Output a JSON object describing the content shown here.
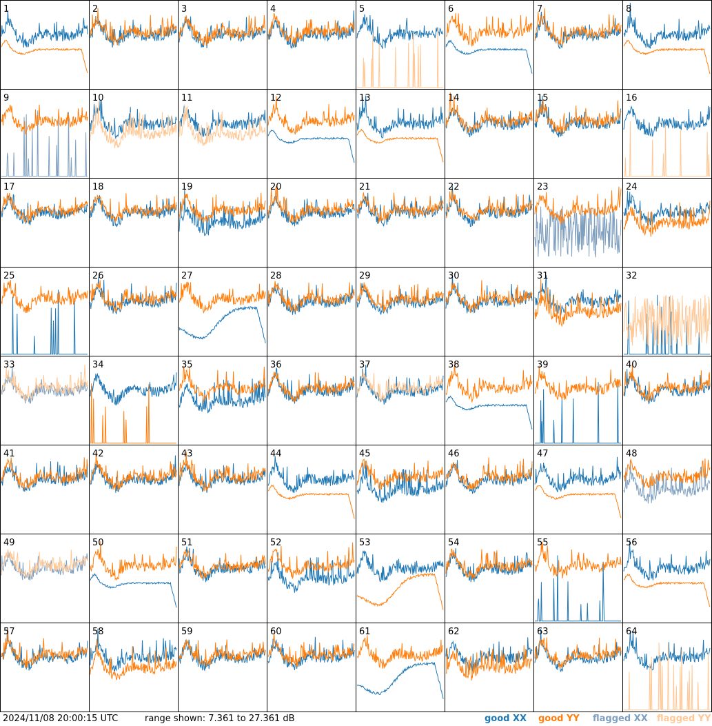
{
  "footer": {
    "timestamp": "2024/11/08 20:00:15 UTC",
    "range_text": "range shown: 7.361 to 27.361 dB"
  },
  "legend": [
    {
      "name": "good XX",
      "color": "#1f77b4"
    },
    {
      "name": "good YY",
      "color": "#ff7f0e"
    },
    {
      "name": "flagged XX",
      "color": "#7f9fbf"
    },
    {
      "name": "flagged YY",
      "color": "#ffc896"
    }
  ],
  "chart_data": {
    "type": "line",
    "grid": "8x8",
    "ylim": [
      7.361,
      27.361
    ],
    "yunit": "dB",
    "panels": [
      {
        "label": "1",
        "xx": "good",
        "yy": "good",
        "xx_shape": "normal",
        "yy_shape": "smooth"
      },
      {
        "label": "2",
        "xx": "good",
        "yy": "good",
        "xx_shape": "normal",
        "yy_shape": "normal"
      },
      {
        "label": "3",
        "xx": "good",
        "yy": "good",
        "xx_shape": "normal",
        "yy_shape": "normal"
      },
      {
        "label": "4",
        "xx": "good",
        "yy": "good",
        "xx_shape": "normal",
        "yy_shape": "normal"
      },
      {
        "label": "5",
        "xx": "good",
        "yy": "flagged",
        "xx_shape": "normal",
        "yy_shape": "spikes"
      },
      {
        "label": "6",
        "xx": "good",
        "yy": "good",
        "xx_shape": "smooth",
        "yy_shape": "normal"
      },
      {
        "label": "7",
        "xx": "good",
        "yy": "good",
        "xx_shape": "normal",
        "yy_shape": "normal"
      },
      {
        "label": "8",
        "xx": "good",
        "yy": "good",
        "xx_shape": "normal",
        "yy_shape": "smooth"
      },
      {
        "label": "9",
        "xx": "flagged",
        "yy": "good",
        "xx_shape": "spikes",
        "yy_shape": "normal"
      },
      {
        "label": "10",
        "xx": "good",
        "yy": "flagged",
        "xx_shape": "normal",
        "yy_shape": "low"
      },
      {
        "label": "11",
        "xx": "good",
        "yy": "flagged",
        "xx_shape": "normal",
        "yy_shape": "low"
      },
      {
        "label": "12",
        "xx": "good",
        "yy": "good",
        "xx_shape": "smooth",
        "yy_shape": "normal"
      },
      {
        "label": "13",
        "xx": "good",
        "yy": "good",
        "xx_shape": "normal",
        "yy_shape": "smooth"
      },
      {
        "label": "14",
        "xx": "good",
        "yy": "good",
        "xx_shape": "normal",
        "yy_shape": "normal"
      },
      {
        "label": "15",
        "xx": "good",
        "yy": "good",
        "xx_shape": "normal",
        "yy_shape": "normal"
      },
      {
        "label": "16",
        "xx": "good",
        "yy": "flagged",
        "xx_shape": "normal",
        "yy_shape": "spikes"
      },
      {
        "label": "17",
        "xx": "good",
        "yy": "good",
        "xx_shape": "normal",
        "yy_shape": "normal"
      },
      {
        "label": "18",
        "xx": "good",
        "yy": "good",
        "xx_shape": "normal",
        "yy_shape": "normal"
      },
      {
        "label": "19",
        "xx": "good",
        "yy": "good",
        "xx_shape": "low",
        "yy_shape": "normal"
      },
      {
        "label": "20",
        "xx": "good",
        "yy": "good",
        "xx_shape": "normal",
        "yy_shape": "normal"
      },
      {
        "label": "21",
        "xx": "good",
        "yy": "good",
        "xx_shape": "normal",
        "yy_shape": "normal"
      },
      {
        "label": "22",
        "xx": "good",
        "yy": "good",
        "xx_shape": "normal",
        "yy_shape": "normal"
      },
      {
        "label": "23",
        "xx": "flagged",
        "yy": "good",
        "xx_shape": "noisy",
        "yy_shape": "normal"
      },
      {
        "label": "24",
        "xx": "good",
        "yy": "good",
        "xx_shape": "normal",
        "yy_shape": "low"
      },
      {
        "label": "25",
        "xx": "good",
        "yy": "good",
        "xx_shape": "spikes",
        "yy_shape": "normal"
      },
      {
        "label": "26",
        "xx": "good",
        "yy": "good",
        "xx_shape": "normal",
        "yy_shape": "normal"
      },
      {
        "label": "27",
        "xx": "good",
        "yy": "good",
        "xx_shape": "dip",
        "yy_shape": "normal"
      },
      {
        "label": "28",
        "xx": "good",
        "yy": "good",
        "xx_shape": "normal",
        "yy_shape": "normal"
      },
      {
        "label": "29",
        "xx": "good",
        "yy": "good",
        "xx_shape": "normal",
        "yy_shape": "normal"
      },
      {
        "label": "30",
        "xx": "good",
        "yy": "good",
        "xx_shape": "normal",
        "yy_shape": "normal"
      },
      {
        "label": "31",
        "xx": "good",
        "yy": "good",
        "xx_shape": "normal",
        "yy_shape": "low"
      },
      {
        "label": "32",
        "xx": "good",
        "yy": "flagged",
        "xx_shape": "spikes",
        "yy_shape": "noisy"
      },
      {
        "label": "33",
        "xx": "flagged",
        "yy": "flagged",
        "xx_shape": "normal",
        "yy_shape": "normal"
      },
      {
        "label": "34",
        "xx": "good",
        "yy": "good",
        "xx_shape": "normal",
        "yy_shape": "spikes"
      },
      {
        "label": "35",
        "xx": "good",
        "yy": "good",
        "xx_shape": "low",
        "yy_shape": "normal"
      },
      {
        "label": "36",
        "xx": "good",
        "yy": "good",
        "xx_shape": "normal",
        "yy_shape": "normal"
      },
      {
        "label": "37",
        "xx": "good",
        "yy": "flagged",
        "xx_shape": "normal",
        "yy_shape": "normal"
      },
      {
        "label": "38",
        "xx": "good",
        "yy": "good",
        "xx_shape": "smooth",
        "yy_shape": "normal"
      },
      {
        "label": "39",
        "xx": "good",
        "yy": "good",
        "xx_shape": "spikes",
        "yy_shape": "normal"
      },
      {
        "label": "40",
        "xx": "good",
        "yy": "good",
        "xx_shape": "normal",
        "yy_shape": "normal"
      },
      {
        "label": "41",
        "xx": "good",
        "yy": "good",
        "xx_shape": "normal",
        "yy_shape": "normal"
      },
      {
        "label": "42",
        "xx": "good",
        "yy": "good",
        "xx_shape": "normal",
        "yy_shape": "normal"
      },
      {
        "label": "43",
        "xx": "good",
        "yy": "good",
        "xx_shape": "normal",
        "yy_shape": "normal"
      },
      {
        "label": "44",
        "xx": "good",
        "yy": "good",
        "xx_shape": "normal",
        "yy_shape": "smooth"
      },
      {
        "label": "45",
        "xx": "good",
        "yy": "good",
        "xx_shape": "low",
        "yy_shape": "normal"
      },
      {
        "label": "46",
        "xx": "good",
        "yy": "good",
        "xx_shape": "normal",
        "yy_shape": "normal"
      },
      {
        "label": "47",
        "xx": "good",
        "yy": "good",
        "xx_shape": "normal",
        "yy_shape": "smooth"
      },
      {
        "label": "48",
        "xx": "flagged",
        "yy": "good",
        "xx_shape": "low",
        "yy_shape": "normal"
      },
      {
        "label": "49",
        "xx": "flagged",
        "yy": "flagged",
        "xx_shape": "normal",
        "yy_shape": "normal"
      },
      {
        "label": "50",
        "xx": "good",
        "yy": "good",
        "xx_shape": "smooth",
        "yy_shape": "normal"
      },
      {
        "label": "51",
        "xx": "good",
        "yy": "good",
        "xx_shape": "normal",
        "yy_shape": "normal"
      },
      {
        "label": "52",
        "xx": "good",
        "yy": "good",
        "xx_shape": "low",
        "yy_shape": "normal"
      },
      {
        "label": "53",
        "xx": "good",
        "yy": "good",
        "xx_shape": "normal",
        "yy_shape": "dip"
      },
      {
        "label": "54",
        "xx": "good",
        "yy": "good",
        "xx_shape": "normal",
        "yy_shape": "normal"
      },
      {
        "label": "55",
        "xx": "good",
        "yy": "good",
        "xx_shape": "spikes",
        "yy_shape": "normal"
      },
      {
        "label": "56",
        "xx": "good",
        "yy": "good",
        "xx_shape": "normal",
        "yy_shape": "smooth"
      },
      {
        "label": "57",
        "xx": "good",
        "yy": "good",
        "xx_shape": "normal",
        "yy_shape": "normal"
      },
      {
        "label": "58",
        "xx": "good",
        "yy": "good",
        "xx_shape": "normal",
        "yy_shape": "low"
      },
      {
        "label": "59",
        "xx": "good",
        "yy": "good",
        "xx_shape": "normal",
        "yy_shape": "normal"
      },
      {
        "label": "60",
        "xx": "good",
        "yy": "good",
        "xx_shape": "normal",
        "yy_shape": "normal"
      },
      {
        "label": "61",
        "xx": "good",
        "yy": "good",
        "xx_shape": "dip",
        "yy_shape": "normal"
      },
      {
        "label": "62",
        "xx": "good",
        "yy": "good",
        "xx_shape": "normal",
        "yy_shape": "low"
      },
      {
        "label": "63",
        "xx": "good",
        "yy": "good",
        "xx_shape": "normal",
        "yy_shape": "normal"
      },
      {
        "label": "64",
        "xx": "good",
        "yy": "flagged",
        "xx_shape": "normal",
        "yy_shape": "spikes"
      }
    ]
  }
}
